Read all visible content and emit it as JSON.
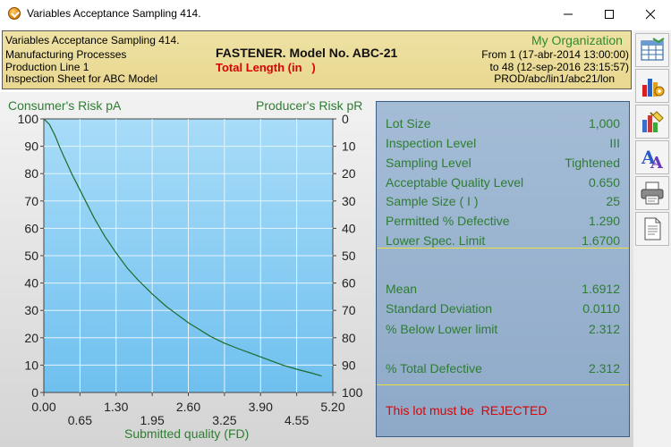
{
  "window": {
    "title": "Variables Acceptance Sampling 414."
  },
  "header": {
    "title": "Variables Acceptance Sampling 414.",
    "line2": "Manufacturing Processes",
    "line3": "Production Line 1",
    "line4": "Inspection Sheet for ABC Model",
    "product": "FASTENER. Model No. ABC-21",
    "measure": "Total Length (in   )",
    "organization": "My Organization",
    "from": "From 1 (17-abr-2014  13:00:00)",
    "to": "to 48 (12-sep-2016  23:15:57)",
    "path": "PROD/abc/lin1/abc21/lon"
  },
  "toolbar": {
    "items": [
      {
        "icon": "spreadsheet-icon"
      },
      {
        "icon": "bar-chart-settings-icon"
      },
      {
        "icon": "chart-palette-icon"
      },
      {
        "icon": "font-icon"
      },
      {
        "icon": "printer-icon"
      },
      {
        "icon": "document-icon"
      }
    ]
  },
  "chart_data": {
    "type": "line",
    "title": "",
    "ylabel_left": "Consumer's Risk pA",
    "ylabel_right": "Producer's Risk pR",
    "xlabel": "Submitted quality (FD)",
    "xlim": [
      0,
      5.2
    ],
    "ylim": [
      0,
      100
    ],
    "y_left_ticks": [
      "100",
      "90",
      "80",
      "70",
      "60",
      "50",
      "40",
      "30",
      "20",
      "10",
      "0"
    ],
    "y_right_ticks": [
      "0",
      "10",
      "20",
      "30",
      "40",
      "50",
      "60",
      "70",
      "80",
      "90",
      "100"
    ],
    "x_ticks_upper": [
      "0.00",
      "1.30",
      "2.60",
      "3.90",
      "5.20"
    ],
    "x_ticks_lower": [
      "0.65",
      "1.95",
      "3.25",
      "4.55"
    ],
    "grid": true,
    "series": [
      {
        "color": "#1b6b2a",
        "x": [
          0.0,
          0.1,
          0.2,
          0.3,
          0.5,
          0.7,
          0.9,
          1.1,
          1.3,
          1.5,
          1.7,
          1.95,
          2.2,
          2.4,
          2.6,
          2.8,
          3.0,
          3.25,
          3.5,
          3.7,
          3.9,
          4.1,
          4.3,
          4.55,
          4.8,
          5.0
        ],
        "y": [
          100,
          98,
          94,
          89,
          80,
          72,
          64,
          57,
          51,
          45.5,
          41,
          36,
          31.5,
          28.5,
          25.5,
          23,
          20.5,
          18,
          16,
          14.5,
          13,
          11.5,
          10,
          8.5,
          7.2,
          6
        ]
      }
    ]
  },
  "panel": {
    "rows_top": [
      {
        "label": "Lot Size",
        "value": "1,000"
      },
      {
        "label": "Inspection Level",
        "value": "III"
      },
      {
        "label": "Sampling Level",
        "value": "Tightened"
      },
      {
        "label": "Acceptable Quality Level",
        "value": "0.650"
      },
      {
        "label": "Sample Size ( I )",
        "value": "25"
      },
      {
        "label": "Permitted % Defective",
        "value": "1.290"
      },
      {
        "label": "Lower Spec. Limit",
        "value": "1.6700"
      }
    ],
    "rows_bottom": [
      {
        "label": "Mean",
        "value": "1.6912"
      },
      {
        "label": "Standard Deviation",
        "value": "0.0110"
      },
      {
        "label": "% Below Lower limit",
        "value": "2.312"
      },
      {
        "label": "% Total Defective",
        "value": "2.312"
      }
    ],
    "status": "This lot must be  REJECTED"
  }
}
